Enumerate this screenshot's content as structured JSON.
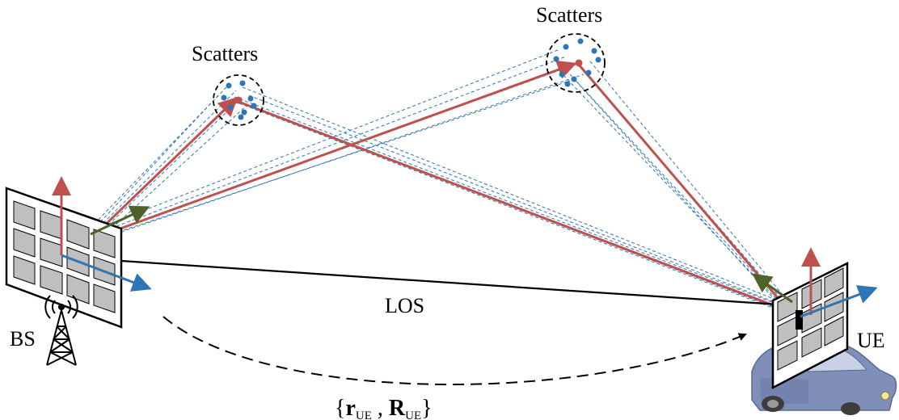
{
  "labels": {
    "scatters_left": "Scatters",
    "scatters_right": "Scatters",
    "bs": "BS",
    "ue": "UE",
    "los": "LOS",
    "formula": {
      "open": "{",
      "r": "r",
      "r_sub": "UE",
      "comma": " , ",
      "R": "R",
      "R_sub": "UE",
      "close": "}"
    }
  },
  "colors": {
    "red_path": "#c0504d",
    "blue_path": "#2e75b6",
    "green_axis": "#4f6228",
    "panel_fill": "#bfbfbf",
    "dark": "#000000",
    "car_body": "#7f8fb8"
  },
  "icons": [
    "tower-icon",
    "car-icon",
    "antenna-panel-icon",
    "scatter-cluster-icon"
  ]
}
